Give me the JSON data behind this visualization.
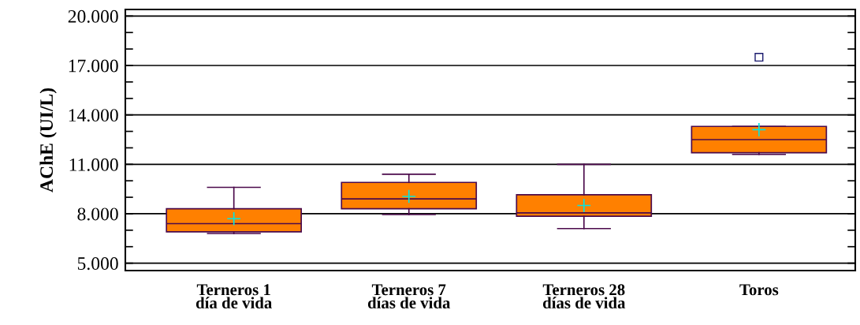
{
  "chart_data": {
    "type": "box",
    "categories": [
      "Terneros 1\ndía de vida",
      "Terneros 7\ndías de vida",
      "Terneros 28\ndías de vida",
      "Toros"
    ],
    "ylabel": "AChE (UI/L)",
    "color": "#ff8000",
    "boxes": [
      {
        "low": 6800,
        "q1": 6900,
        "median": 7400,
        "q3": 8300,
        "high": 9600,
        "mean": 7700
      },
      {
        "low": 7950,
        "q1": 8300,
        "median": 8900,
        "q3": 9900,
        "high": 10400,
        "mean": 9050
      },
      {
        "low": 7100,
        "q1": 7850,
        "median": 8050,
        "q3": 9150,
        "high": 11000,
        "mean": 8500
      },
      {
        "low": 11600,
        "q1": 11700,
        "median": 12500,
        "q3": 13300,
        "high": 13300,
        "mean": 13100,
        "outliers": [
          17500
        ]
      }
    ],
    "ylim": [
      4550,
      20400
    ],
    "yticks": [
      {
        "value": 5000,
        "label": "5.000"
      },
      {
        "value": 6000,
        "label": null
      },
      {
        "value": 7000,
        "label": null
      },
      {
        "value": 8000,
        "label": "8.000"
      },
      {
        "value": 9000,
        "label": null
      },
      {
        "value": 10000,
        "label": null
      },
      {
        "value": 11000,
        "label": "11.000"
      },
      {
        "value": 12000,
        "label": null
      },
      {
        "value": 13000,
        "label": null
      },
      {
        "value": 14000,
        "label": "14.000"
      },
      {
        "value": 15000,
        "label": null
      },
      {
        "value": 16000,
        "label": null
      },
      {
        "value": 17000,
        "label": "17.000"
      },
      {
        "value": 18000,
        "label": null
      },
      {
        "value": 19000,
        "label": null
      },
      {
        "value": 20000,
        "label": "20.000"
      }
    ],
    "grid": "y",
    "legend": false
  }
}
